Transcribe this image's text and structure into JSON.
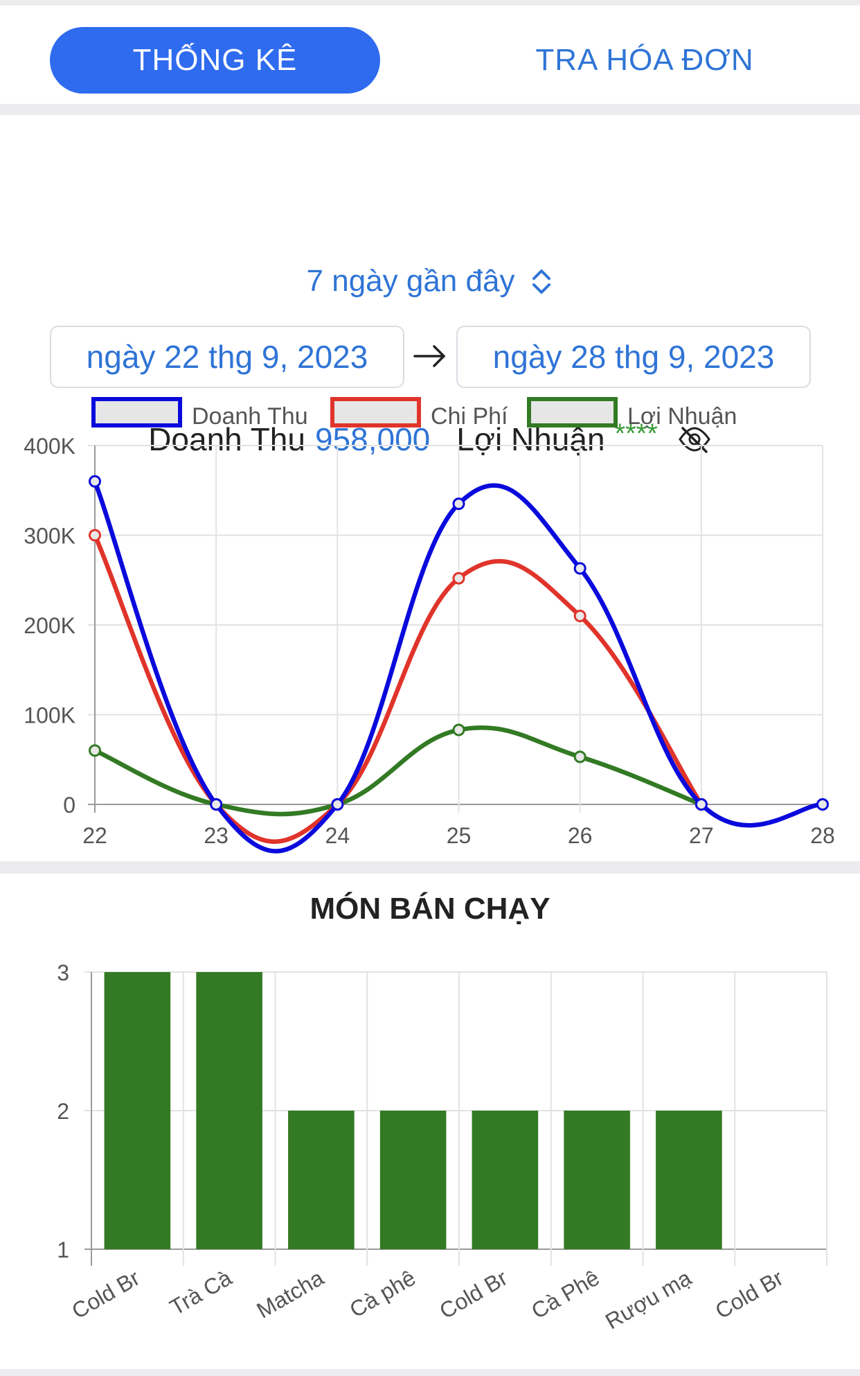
{
  "tabs": {
    "stats": "THỐNG KÊ",
    "invoice": "TRA HÓA ĐƠN"
  },
  "range": {
    "label": "7 ngày gần đây",
    "icon": "chevron-up-down-icon"
  },
  "dates": {
    "from": "ngày 22 thg 9, 2023",
    "to": "ngày 28 thg 9, 2023",
    "arrow_icon": "arrow-right-icon"
  },
  "summary": {
    "revenue_label": "Doanh Thu",
    "revenue_value": "958,000",
    "profit_label": "Lợi Nhuận",
    "profit_value": "****",
    "hide_icon": "eye-off-icon"
  },
  "colors": {
    "accent": "#2f6bef",
    "link": "#2f74d6",
    "revenue": "#0a0adc",
    "cost": "#e0342b",
    "profit": "#327a23",
    "bar": "#337a24"
  },
  "chart_data": [
    {
      "type": "line",
      "title": "",
      "xlabel": "",
      "ylabel": "",
      "x": [
        "22",
        "23",
        "24",
        "25",
        "26",
        "27",
        "28"
      ],
      "y_ticks": [
        "0",
        "100K",
        "200K",
        "300K",
        "400K"
      ],
      "ylim": [
        0,
        400000
      ],
      "grid": true,
      "legend_position": "top",
      "series": [
        {
          "name": "Doanh Thu",
          "color": "#0a0adc",
          "values": [
            360000,
            0,
            0,
            335000,
            263000,
            0,
            0
          ]
        },
        {
          "name": "Chi Phí",
          "color": "#e0342b",
          "values": [
            300000,
            0,
            0,
            252000,
            210000,
            0,
            null
          ]
        },
        {
          "name": "Lợi Nhuận",
          "color": "#327a23",
          "values": [
            60000,
            0,
            0,
            83000,
            53000,
            0,
            null
          ]
        }
      ]
    },
    {
      "type": "bar",
      "title": "MÓN BÁN CHẠY",
      "xlabel": "",
      "ylabel": "",
      "categories": [
        "Cold Br",
        "Trà Cà",
        "Matcha",
        "Cà phê",
        "Cold Br",
        "Cà Phê",
        "Rượu mạ",
        "Cold Br"
      ],
      "values": [
        3,
        3,
        2,
        2,
        2,
        2,
        2,
        1
      ],
      "y_ticks": [
        "1",
        "2",
        "3"
      ],
      "ylim": [
        1,
        3
      ],
      "grid": true,
      "color": "#337a24"
    }
  ]
}
